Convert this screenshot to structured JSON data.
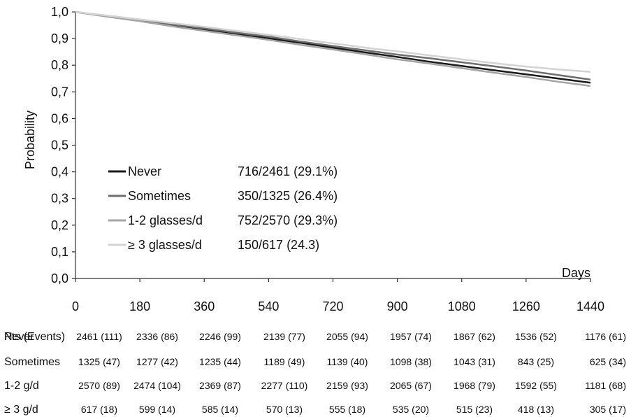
{
  "chart_data": {
    "type": "line",
    "title": "",
    "xlabel": "Days",
    "ylabel": "Probability",
    "xlim": [
      0,
      1440
    ],
    "ylim": [
      0.0,
      1.0
    ],
    "x_ticks": [
      "0",
      "180",
      "360",
      "540",
      "720",
      "900",
      "1080",
      "1260",
      "1440"
    ],
    "y_ticks": [
      "0,0",
      "0,1",
      "0,2",
      "0,3",
      "0,4",
      "0,5",
      "0,6",
      "0,7",
      "0,8",
      "0,9",
      "1,0"
    ],
    "grid": false,
    "legend_position": "inside-lower-left",
    "series": [
      {
        "name": "Never",
        "events_text": "716/2461 (29.1%)",
        "color": "#1a1a1a",
        "x": [
          0,
          90,
          180,
          270,
          360,
          450,
          540,
          630,
          720,
          810,
          900,
          990,
          1080,
          1170,
          1260,
          1350,
          1440
        ],
        "y": [
          1.0,
          0.983,
          0.967,
          0.951,
          0.934,
          0.918,
          0.901,
          0.884,
          0.866,
          0.848,
          0.831,
          0.813,
          0.797,
          0.781,
          0.766,
          0.75,
          0.734
        ]
      },
      {
        "name": "Sometimes",
        "events_text": "350/1325 (26.4%)",
        "color": "#6e6e6e",
        "x": [
          0,
          90,
          180,
          270,
          360,
          450,
          540,
          630,
          720,
          810,
          900,
          990,
          1080,
          1170,
          1260,
          1350,
          1440
        ],
        "y": [
          1.0,
          0.983,
          0.968,
          0.953,
          0.938,
          0.922,
          0.907,
          0.889,
          0.872,
          0.856,
          0.84,
          0.826,
          0.811,
          0.796,
          0.78,
          0.763,
          0.746
        ]
      },
      {
        "name": "1-2 glasses/d",
        "events_text": "752/2570 (29.3%)",
        "color": "#a5a5a5",
        "x": [
          0,
          90,
          180,
          270,
          360,
          450,
          540,
          630,
          720,
          810,
          900,
          990,
          1080,
          1170,
          1260,
          1350,
          1440
        ],
        "y": [
          1.0,
          0.982,
          0.965,
          0.946,
          0.929,
          0.912,
          0.895,
          0.876,
          0.859,
          0.841,
          0.822,
          0.806,
          0.789,
          0.772,
          0.756,
          0.738,
          0.722
        ]
      },
      {
        "name": "≥ 3 glasses/d",
        "events_text": "150/617 (24.3)",
        "color": "#d3d3d3",
        "x": [
          0,
          90,
          180,
          270,
          360,
          450,
          540,
          630,
          720,
          810,
          900,
          990,
          1080,
          1170,
          1260,
          1350,
          1440
        ],
        "y": [
          1.0,
          0.986,
          0.972,
          0.958,
          0.944,
          0.929,
          0.914,
          0.898,
          0.882,
          0.866,
          0.852,
          0.837,
          0.822,
          0.808,
          0.795,
          0.784,
          0.775
        ]
      }
    ],
    "risk_table": {
      "header": "Pts (Events)",
      "rows": [
        {
          "label": "Never",
          "values": [
            "2461 (111)",
            "2336 (86)",
            "2246 (99)",
            "2139 (77)",
            "2055 (94)",
            "1957 (74)",
            "1867 (62)",
            "1536 (52)",
            "1176 (61)"
          ]
        },
        {
          "label": "Sometimes",
          "values": [
            "1325 (47)",
            "1277 (42)",
            "1235 (44)",
            "1189 (49)",
            "1139 (40)",
            "1098 (38)",
            "1043 (31)",
            "843 (25)",
            "625 (34)"
          ]
        },
        {
          "label": "1-2 g/d",
          "values": [
            "2570 (89)",
            "2474 (104)",
            "2369 (87)",
            "2277 (110)",
            "2159 (93)",
            "2065 (67)",
            "1968 (79)",
            "1592 (55)",
            "1181 (68)"
          ]
        },
        {
          "label": "≥ 3 g/d",
          "values": [
            "617 (18)",
            "599 (14)",
            "585 (14)",
            "570 (13)",
            "555 (18)",
            "535 (20)",
            "515 (23)",
            "418 (13)",
            "305 (17)"
          ]
        }
      ]
    }
  }
}
